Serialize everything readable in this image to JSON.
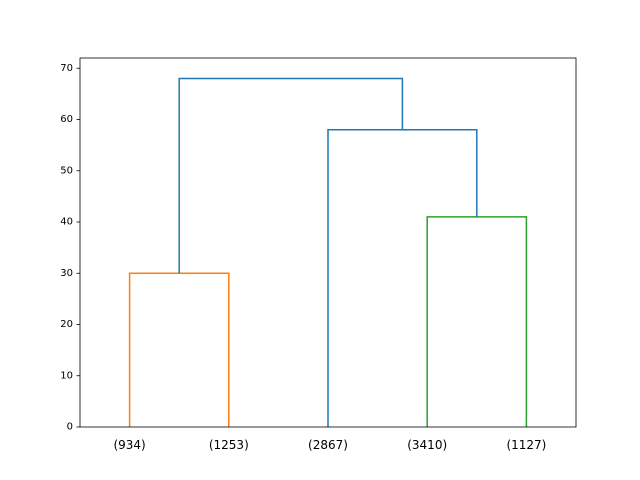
{
  "chart_data": {
    "type": "dendrogram",
    "title": "",
    "xlabel": "",
    "ylabel": "",
    "ylim": [
      0,
      72
    ],
    "yticks": [
      0,
      10,
      20,
      30,
      40,
      50,
      60,
      70
    ],
    "grid": false,
    "legend": "none",
    "leaves": [
      "(934)",
      "(1253)",
      "(2867)",
      "(3410)",
      "(1127)"
    ],
    "links": [
      {
        "id": "link-1",
        "left": "(934)",
        "right": "(1253)",
        "height": 30,
        "color": "#ff7f0e"
      },
      {
        "id": "link-2",
        "left": "(3410)",
        "right": "(1127)",
        "height": 41,
        "color": "#2ca02c"
      },
      {
        "id": "link-3",
        "left": "(2867)",
        "right": "link-2",
        "height": 58,
        "color": "#1f77b4"
      },
      {
        "id": "link-4",
        "left": "link-1",
        "right": "link-3",
        "height": 68,
        "color": "#1f77b4"
      }
    ],
    "axis_color": "#000000"
  }
}
